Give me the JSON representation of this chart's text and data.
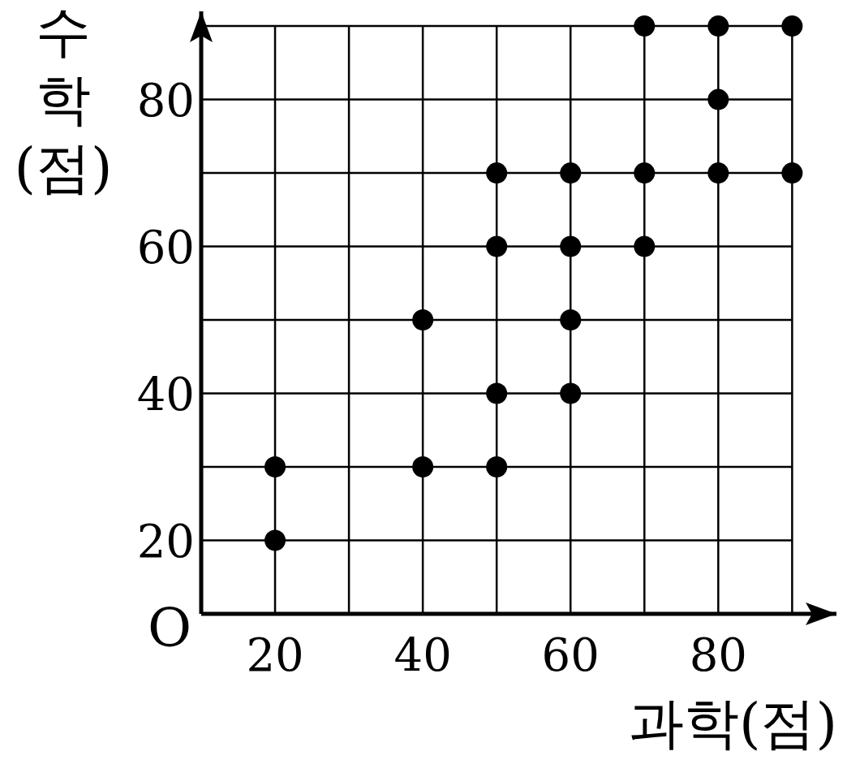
{
  "chart_data": {
    "type": "scatter",
    "xlabel": "과학(점)",
    "ylabel": "수학(점)",
    "annotations": [
      "O"
    ],
    "xlim": [
      10,
      96
    ],
    "ylim": [
      10,
      92
    ],
    "xticks": [
      20,
      {
        "value": 30,
        "label": null
      },
      40,
      {
        "value": 50,
        "label": null
      },
      60,
      {
        "value": 70,
        "label": null
      },
      80,
      {
        "value": 90,
        "label": null
      }
    ],
    "yticks": [
      20,
      {
        "value": 30,
        "label": null
      },
      40,
      {
        "value": 50,
        "label": null
      },
      60,
      {
        "value": 70,
        "label": null
      },
      80,
      {
        "value": 90,
        "label": null
      }
    ],
    "grid": true,
    "marker": "circle",
    "series": [
      {
        "color": "#000000",
        "x": [
          20,
          20,
          40,
          40,
          50,
          50,
          50,
          50,
          60,
          60,
          60,
          60,
          70,
          70,
          70,
          80,
          80,
          80,
          90,
          90
        ],
        "values": [
          30,
          20,
          50,
          30,
          70,
          60,
          40,
          30,
          70,
          60,
          50,
          40,
          90,
          70,
          60,
          90,
          80,
          70,
          90,
          70
        ]
      }
    ]
  }
}
